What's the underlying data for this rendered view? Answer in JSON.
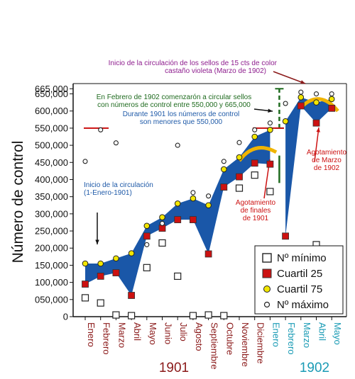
{
  "chart_data": {
    "type": "scatter",
    "ylabel": "Número de control",
    "ylim": [
      0,
      680000
    ],
    "yticks": [
      0,
      50000,
      100000,
      150000,
      200000,
      250000,
      300000,
      350000,
      400000,
      450000,
      500000,
      550000,
      600000,
      650000,
      665000
    ],
    "ytick_labels": [
      "0",
      "050,000",
      "100,000",
      "150,000",
      "200,000",
      "250,000",
      "300,000",
      "350,000",
      "400,000",
      "450,000",
      "500,000",
      "550,000",
      "600,000",
      "650,000",
      "665,000"
    ],
    "categories": [
      "Enero",
      "Febrero",
      "Marzo",
      "Abril",
      "Mayo",
      "Junio",
      "Julio",
      "Agosto",
      "Septiembre",
      "Octubre",
      "Noviembre",
      "Diciembre",
      "Enero",
      "Febrero",
      "Marzo",
      "Abril",
      "Mayo"
    ],
    "category_year": [
      1901,
      1901,
      1901,
      1901,
      1901,
      1901,
      1901,
      1901,
      1901,
      1901,
      1901,
      1901,
      1902,
      1902,
      1902,
      1902,
      1902
    ],
    "year_labels": [
      "1901",
      "1902"
    ],
    "year_colors": [
      "#8b1a1a",
      "#1a9bb5"
    ],
    "series": [
      {
        "name": "Nº mínimo",
        "marker": "square-open",
        "points": [
          [
            0,
            55000
          ],
          [
            1,
            40000
          ],
          [
            2,
            5000
          ],
          [
            3,
            3000
          ],
          [
            4,
            143000
          ],
          [
            5,
            215000
          ],
          [
            6,
            118000
          ],
          [
            7,
            3000
          ],
          [
            8,
            5000
          ],
          [
            9,
            3000
          ],
          [
            10,
            375000
          ],
          [
            11,
            413000
          ],
          [
            12,
            365000
          ],
          [
            15,
            210000
          ]
        ]
      },
      {
        "name": "Cuartil 25",
        "marker": "square-filled",
        "color": "#cc1111",
        "points": [
          [
            0,
            95000
          ],
          [
            1,
            118000
          ],
          [
            2,
            128000
          ],
          [
            3,
            62000
          ],
          [
            4,
            235000
          ],
          [
            5,
            258000
          ],
          [
            6,
            283000
          ],
          [
            7,
            283000
          ],
          [
            8,
            183000
          ],
          [
            9,
            378000
          ],
          [
            10,
            408000
          ],
          [
            11,
            448000
          ],
          [
            12,
            445000
          ],
          [
            13,
            235000
          ],
          [
            14,
            615000
          ],
          [
            15,
            565000
          ],
          [
            16,
            608000
          ]
        ]
      },
      {
        "name": "Cuartil 75",
        "marker": "circle-filled",
        "color": "#f2e600",
        "points": [
          [
            0,
            155000
          ],
          [
            1,
            155000
          ],
          [
            2,
            170000
          ],
          [
            3,
            185000
          ],
          [
            4,
            265000
          ],
          [
            5,
            290000
          ],
          [
            6,
            330000
          ],
          [
            7,
            345000
          ],
          [
            8,
            325000
          ],
          [
            9,
            430000
          ],
          [
            10,
            465000
          ],
          [
            11,
            525000
          ],
          [
            12,
            545000
          ],
          [
            13,
            570000
          ],
          [
            14,
            640000
          ],
          [
            15,
            625000
          ],
          [
            16,
            635000
          ]
        ]
      },
      {
        "name": "Nº máximo",
        "marker": "circle-open",
        "points": [
          [
            0,
            453000
          ],
          [
            1,
            545000
          ],
          [
            2,
            507000
          ],
          [
            4,
            210000
          ],
          [
            5,
            272000
          ],
          [
            6,
            500000
          ],
          [
            7,
            362000
          ],
          [
            8,
            352000
          ],
          [
            9,
            453000
          ],
          [
            10,
            508000
          ],
          [
            11,
            545000
          ],
          [
            12,
            565000
          ],
          [
            13,
            622000
          ],
          [
            14,
            655000
          ],
          [
            15,
            650000
          ],
          [
            16,
            650000
          ]
        ]
      }
    ],
    "band": {
      "lower_series": "Cuartil 25",
      "upper_series": "Cuartil 75",
      "segments": [
        [
          0,
          12
        ],
        [
          13,
          16
        ]
      ],
      "color": "#1a57a8"
    },
    "annotations": [
      {
        "text": "Inicio de la circulación de los sellos de 15 cts de color",
        "color": "#8e1d8e"
      },
      {
        "text": "castaño violeta (Marzo de 1902)",
        "color": "#8e1d8e"
      },
      {
        "text": "En Febrero de 1902 comenzarón a circular sellos",
        "color": "#1f6b1f"
      },
      {
        "text": "con números de control entre 550,000 y 665,000",
        "color": "#1f6b1f"
      },
      {
        "text": "Durante 1901 los números de control",
        "color": "#1f5aa8"
      },
      {
        "text": "son menores que 550,000",
        "color": "#1f5aa8"
      },
      {
        "text": "Inicio de la circulación",
        "color": "#1f5aa8"
      },
      {
        "text": "(1-Enero-1901)",
        "color": "#1f5aa8"
      },
      {
        "text": "Agotamiento",
        "color": "#cc1111"
      },
      {
        "text": "de finales",
        "color": "#cc1111"
      },
      {
        "text": "de 1901",
        "color": "#cc1111"
      },
      {
        "text": "Agotamiento",
        "color": "#cc1111"
      },
      {
        "text": "de Marzo",
        "color": "#cc1111"
      },
      {
        "text": "de 1902",
        "color": "#cc1111"
      }
    ],
    "legend_position": "bottom-right",
    "grid": false
  }
}
